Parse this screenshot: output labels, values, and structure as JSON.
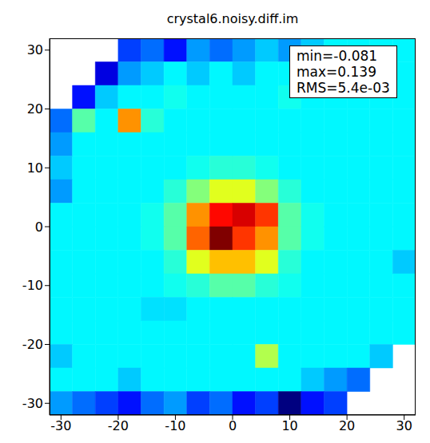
{
  "chart_data": {
    "type": "heatmap",
    "title": "crystal6.noisy.diff.im",
    "annotations": [
      "min=-0.081",
      "max=0.139",
      "RMS=5.4e-03"
    ],
    "xlim": [
      -32,
      32
    ],
    "ylim": [
      -32,
      32
    ],
    "xticks": [
      -30,
      -20,
      -10,
      0,
      10,
      20,
      30
    ],
    "yticks": [
      -30,
      -20,
      -10,
      0,
      10,
      20,
      30
    ],
    "zlim": [
      -0.081,
      0.139
    ],
    "x": [
      -30,
      -26,
      -22,
      -18,
      -14,
      -10,
      -6,
      -2,
      2,
      6,
      10,
      14,
      18,
      22,
      26,
      30
    ],
    "y": [
      30,
      26,
      22,
      18,
      14,
      10,
      6,
      2,
      -2,
      -6,
      -10,
      -14,
      -18,
      -22,
      -26,
      -30
    ],
    "cells": [
      [
        null,
        null,
        null,
        -0.04,
        -0.03,
        -0.05,
        -0.02,
        -0.03,
        -0.02,
        -0.01,
        -0.02,
        -0.01,
        0,
        0,
        0,
        0
      ],
      [
        null,
        null,
        -0.06,
        -0.02,
        -0.01,
        0,
        -0.01,
        0,
        -0.01,
        0,
        0,
        0,
        0,
        0,
        0,
        0
      ],
      [
        null,
        -0.05,
        -0.01,
        0,
        0,
        0.005,
        0,
        0,
        0,
        0,
        0.005,
        0,
        0,
        0,
        0,
        0
      ],
      [
        -0.03,
        0.02,
        0,
        0.08,
        0.01,
        0,
        0,
        0,
        0,
        0,
        0,
        0,
        0,
        0,
        0,
        0
      ],
      [
        -0.02,
        0,
        0,
        0,
        0,
        0,
        0,
        0,
        0,
        0,
        0,
        0,
        0,
        0,
        0,
        0
      ],
      [
        -0.01,
        0,
        0,
        0,
        0,
        0,
        0.005,
        0.01,
        0.01,
        0.005,
        0,
        0,
        0,
        0,
        0,
        0
      ],
      [
        -0.02,
        0,
        0,
        0,
        0,
        0.01,
        0.03,
        0.05,
        0.05,
        0.03,
        0.01,
        0,
        0,
        0,
        0,
        0
      ],
      [
        0,
        0,
        0,
        0,
        0.005,
        0.02,
        0.08,
        0.11,
        0.12,
        0.1,
        0.02,
        0.005,
        0,
        0,
        0,
        0
      ],
      [
        0,
        0,
        0,
        0,
        0.005,
        0.02,
        0.09,
        0.139,
        0.1,
        0.08,
        0.02,
        0.005,
        0,
        0,
        0,
        0
      ],
      [
        0,
        0,
        0,
        0,
        0,
        0.01,
        0.05,
        0.07,
        0.07,
        0.05,
        0.01,
        0,
        0,
        0,
        0,
        -0.01
      ],
      [
        0,
        0,
        0,
        0,
        0,
        0.005,
        0.01,
        0.02,
        0.02,
        0.01,
        0.005,
        0,
        0,
        0,
        0,
        0
      ],
      [
        0,
        0,
        0,
        0,
        -0.005,
        -0.005,
        0,
        0,
        0,
        0,
        0,
        0,
        0,
        0,
        0,
        0
      ],
      [
        0,
        0,
        0,
        0,
        0,
        0,
        0,
        0,
        0,
        0,
        0,
        0,
        0,
        0,
        0,
        0
      ],
      [
        -0.01,
        0,
        0,
        0,
        0,
        0,
        0,
        0,
        0,
        0.04,
        0,
        0,
        0,
        0,
        -0.01,
        null
      ],
      [
        0,
        0,
        0,
        -0.01,
        0,
        0,
        0,
        0,
        0,
        0,
        0,
        -0.01,
        -0.02,
        -0.03,
        null,
        null
      ],
      [
        -0.02,
        -0.03,
        -0.04,
        -0.05,
        -0.03,
        -0.02,
        -0.04,
        -0.03,
        -0.05,
        -0.04,
        -0.081,
        -0.05,
        -0.04,
        null,
        null,
        null
      ]
    ]
  }
}
